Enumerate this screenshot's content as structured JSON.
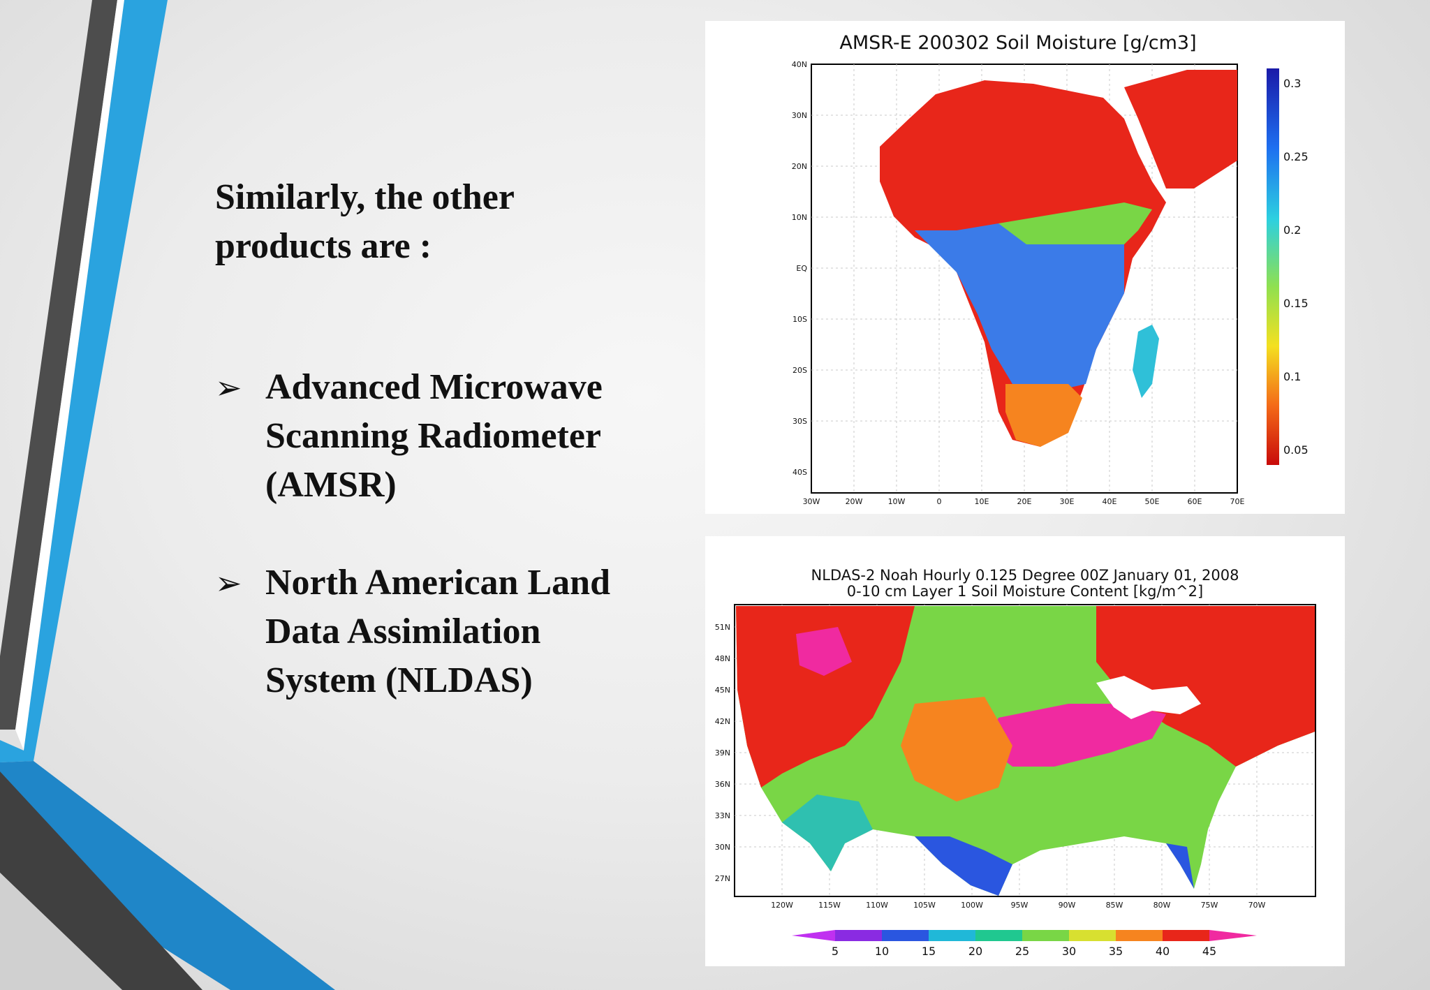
{
  "slide": {
    "intro_line1": "Similarly, the other",
    "intro_line2": "products are :",
    "bullet_marker": "➢",
    "bullets": [
      {
        "lines": [
          "Advanced Microwave",
          "Scanning Radiometer",
          "(AMSR)"
        ]
      },
      {
        "lines": [
          "North American Land",
          "Data Assimilation",
          "System (NLDAS)"
        ]
      }
    ]
  },
  "colors": {
    "accent_blue": "#2aa3df",
    "accent_dark": "#4a4a4a",
    "map_red": "#e8261a",
    "map_orange": "#f6841f",
    "map_green": "#79d646",
    "map_blue": "#2a56e0",
    "map_magenta": "#f02aa0"
  },
  "amsr_map": {
    "title": "AMSR-E 200302 Soil Moisture [g/cm3]",
    "y_ticks": [
      "40N",
      "30N",
      "20N",
      "10N",
      "EQ",
      "10S",
      "20S",
      "30S",
      "40S"
    ],
    "x_ticks": [
      "30W",
      "20W",
      "10W",
      "0",
      "10E",
      "20E",
      "30E",
      "40E",
      "50E",
      "60E",
      "70E"
    ],
    "colorbar_labels": [
      "0.3",
      "0.25",
      "0.2",
      "0.15",
      "0.1",
      "0.05"
    ]
  },
  "nldas_map": {
    "title_line1": "NLDAS-2 Noah Hourly 0.125 Degree 00Z January 01, 2008",
    "title_line2": "0-10 cm Layer 1 Soil Moisture Content [kg/m^2]",
    "y_ticks": [
      "51N",
      "48N",
      "45N",
      "42N",
      "39N",
      "36N",
      "33N",
      "30N",
      "27N"
    ],
    "x_ticks": [
      "120W",
      "115W",
      "110W",
      "105W",
      "100W",
      "95W",
      "90W",
      "85W",
      "80W",
      "75W",
      "70W"
    ],
    "colorbar_labels": [
      "5",
      "10",
      "15",
      "20",
      "25",
      "30",
      "35",
      "40",
      "45"
    ]
  }
}
